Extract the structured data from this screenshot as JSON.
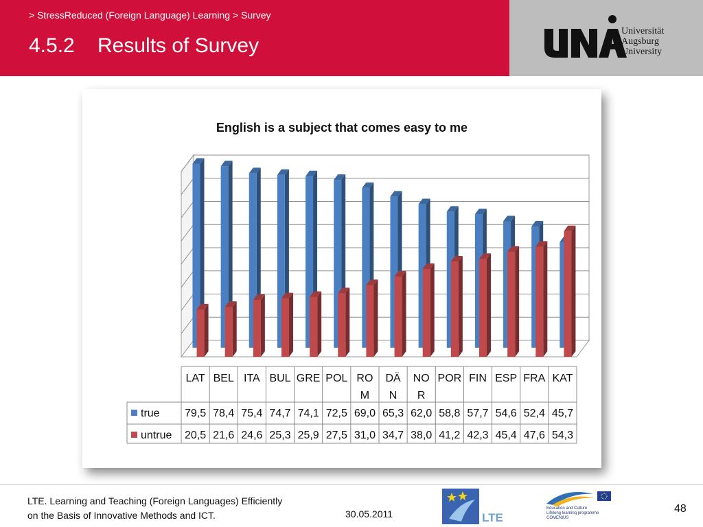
{
  "header": {
    "breadcrumb": "> StressReduced (Foreign Language) Learning > Survey",
    "section_number": "4.5.2",
    "title": "Results of Survey",
    "university_name": [
      "Universität",
      "Augsburg",
      "University"
    ],
    "logo_text": "UNA"
  },
  "chart_data": {
    "type": "bar",
    "title": "English is a subject that comes easy to me",
    "categories": [
      "LAT",
      "BEL",
      "ITA",
      "BUL",
      "GRE",
      "POL",
      "ROM",
      "DÄN",
      "NOR",
      "POR",
      "FIN",
      "ESP",
      "FRA",
      "KAT"
    ],
    "category_lines": [
      [
        "LAT"
      ],
      [
        "BEL"
      ],
      [
        "ITA"
      ],
      [
        "BUL"
      ],
      [
        "GRE"
      ],
      [
        "POL"
      ],
      [
        "RO",
        "M"
      ],
      [
        "DÄ",
        "N"
      ],
      [
        "NO",
        "R"
      ],
      [
        "POR"
      ],
      [
        "FIN"
      ],
      [
        "ESP"
      ],
      [
        "FRA"
      ],
      [
        "KAT"
      ]
    ],
    "series": [
      {
        "name": "true",
        "color": "#4a7fc1",
        "values": [
          79.5,
          78.4,
          75.4,
          74.7,
          74.1,
          72.5,
          69.0,
          65.3,
          62.0,
          58.8,
          57.7,
          54.6,
          52.4,
          45.7
        ],
        "labels": [
          "79,5",
          "78,4",
          "75,4",
          "74,7",
          "74,1",
          "72,5",
          "69,0",
          "65,3",
          "62,0",
          "58,8",
          "57,7",
          "54,6",
          "52,4",
          "45,7"
        ]
      },
      {
        "name": "untrue",
        "color": "#c0494b",
        "values": [
          20.5,
          21.6,
          24.6,
          25.3,
          25.9,
          27.5,
          31.0,
          34.7,
          38.0,
          41.2,
          42.3,
          45.4,
          47.6,
          54.3
        ],
        "labels": [
          "20,5",
          "21,6",
          "24,6",
          "25,3",
          "25,9",
          "27,5",
          "31,0",
          "34,7",
          "38,0",
          "41,2",
          "42,3",
          "45,4",
          "47,6",
          "54,3"
        ]
      }
    ],
    "ylim": [
      0,
      80
    ],
    "grid": true,
    "legend": "data-table"
  },
  "footer": {
    "line1": "LTE. Learning and Teaching (Foreign Languages) Efficiently",
    "line2": "on the Basis of Innovative Methods and ICT.",
    "date": "30.05.2011",
    "page": "48",
    "lte_logo_text": "LTE",
    "comenius_text": [
      "Education and Culture",
      "Lifelong learning programme",
      "COMENIUS"
    ]
  }
}
